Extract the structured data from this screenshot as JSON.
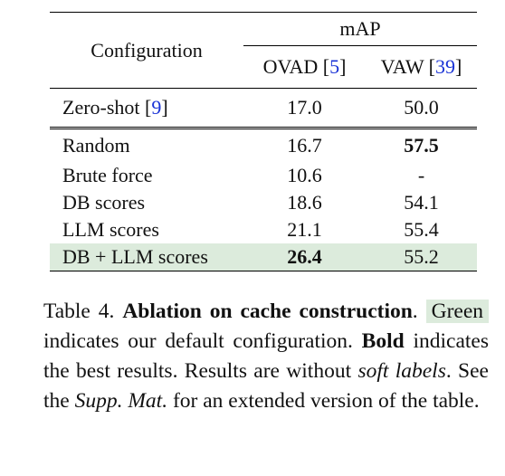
{
  "table": {
    "header": {
      "group": "mAP",
      "columns": [
        [
          {
            "text": "Configuration"
          }
        ],
        [
          {
            "text": "OVAD ["
          },
          {
            "text": "5",
            "style": "cite"
          },
          {
            "text": "]"
          }
        ],
        [
          {
            "text": "VAW ["
          },
          {
            "text": "39",
            "style": "cite"
          },
          {
            "text": "]"
          }
        ]
      ]
    },
    "rows": [
      {
        "cells": [
          [
            {
              "text": "Zero-shot ["
            },
            {
              "text": "9",
              "style": "cite"
            },
            {
              "text": "]"
            }
          ],
          [
            {
              "text": "17.0"
            }
          ],
          [
            {
              "text": "50.0"
            }
          ]
        ]
      },
      {
        "group_start": true,
        "cells": [
          [
            {
              "text": "Random"
            }
          ],
          [
            {
              "text": "16.7"
            }
          ],
          [
            {
              "text": "57.5",
              "style": "bold"
            }
          ]
        ]
      },
      {
        "cells": [
          [
            {
              "text": "Brute force"
            }
          ],
          [
            {
              "text": "10.6"
            }
          ],
          [
            {
              "text": "-"
            }
          ]
        ]
      },
      {
        "cells": [
          [
            {
              "text": "DB scores"
            }
          ],
          [
            {
              "text": "18.6"
            }
          ],
          [
            {
              "text": "54.1"
            }
          ]
        ]
      },
      {
        "cells": [
          [
            {
              "text": "LLM scores"
            }
          ],
          [
            {
              "text": "21.1"
            }
          ],
          [
            {
              "text": "55.4"
            }
          ]
        ]
      },
      {
        "highlight": true,
        "cells": [
          [
            {
              "text": "DB + LLM scores"
            }
          ],
          [
            {
              "text": "26.4",
              "style": "bold"
            }
          ],
          [
            {
              "text": "55.2"
            }
          ]
        ]
      }
    ]
  },
  "caption": [
    {
      "text": "Table 4. "
    },
    {
      "text": "Ablation on cache construction",
      "style": "bold"
    },
    {
      "text": ". "
    },
    {
      "text": "Green",
      "style": "green"
    },
    {
      "text": " indicates our default configuration. "
    },
    {
      "text": "Bold",
      "style": "bold"
    },
    {
      "text": " indicates the best results. Results are without "
    },
    {
      "text": "soft labels",
      "style": "italic"
    },
    {
      "text": ". See the "
    },
    {
      "text": "Supp. Mat.",
      "style": "italic"
    },
    {
      "text": " for an extended version of the table."
    }
  ]
}
